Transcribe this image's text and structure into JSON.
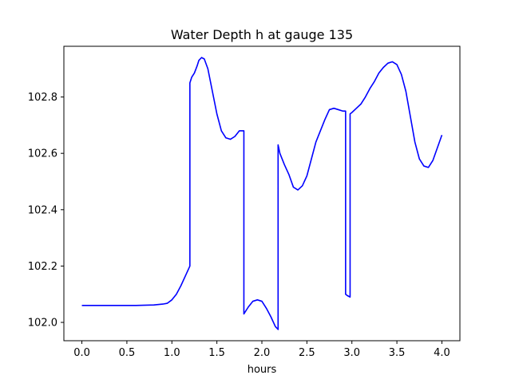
{
  "chart_data": {
    "type": "line",
    "title": "Water Depth h at gauge 135",
    "xlabel": "hours",
    "ylabel": "",
    "xlim": [
      -0.2,
      4.2
    ],
    "ylim": [
      101.935,
      102.98
    ],
    "xticks": [
      0.0,
      0.5,
      1.0,
      1.5,
      2.0,
      2.5,
      3.0,
      3.5,
      4.0
    ],
    "xtick_labels": [
      "0.0",
      "0.5",
      "1.0",
      "1.5",
      "2.0",
      "2.5",
      "3.0",
      "3.5",
      "4.0"
    ],
    "yticks": [
      102.0,
      102.2,
      102.4,
      102.6,
      102.8
    ],
    "ytick_labels": [
      "102.0",
      "102.2",
      "102.4",
      "102.6",
      "102.8"
    ],
    "grid": false,
    "line_color": "#0000ff",
    "series": [
      {
        "x": [
          0.0,
          0.2,
          0.4,
          0.6,
          0.8,
          0.9,
          0.95,
          1.0,
          1.05,
          1.1,
          1.15,
          1.2,
          1.2,
          1.22,
          1.25,
          1.28,
          1.3,
          1.33,
          1.36,
          1.4,
          1.45,
          1.5,
          1.55,
          1.6,
          1.65,
          1.7,
          1.75,
          1.8,
          1.8,
          1.85,
          1.9,
          1.95,
          2.0,
          2.05,
          2.1,
          2.15,
          2.18,
          2.18,
          2.2,
          2.25,
          2.3,
          2.35,
          2.4,
          2.45,
          2.5,
          2.55,
          2.6,
          2.65,
          2.7,
          2.75,
          2.8,
          2.85,
          2.9,
          2.93,
          2.93,
          2.95,
          2.98,
          2.98,
          3.0,
          3.05,
          3.1,
          3.15,
          3.2,
          3.25,
          3.3,
          3.35,
          3.4,
          3.45,
          3.5,
          3.55,
          3.6,
          3.65,
          3.7,
          3.75,
          3.8,
          3.85,
          3.9,
          3.95,
          4.0
        ],
        "y": [
          102.06,
          102.06,
          102.06,
          102.06,
          102.062,
          102.065,
          102.068,
          102.08,
          102.1,
          102.13,
          102.165,
          102.2,
          102.85,
          102.87,
          102.885,
          102.91,
          102.93,
          102.94,
          102.935,
          102.9,
          102.82,
          102.74,
          102.68,
          102.655,
          102.65,
          102.66,
          102.68,
          102.68,
          102.03,
          102.055,
          102.075,
          102.08,
          102.075,
          102.05,
          102.02,
          101.985,
          101.975,
          102.63,
          102.6,
          102.56,
          102.525,
          102.48,
          102.47,
          102.485,
          102.52,
          102.58,
          102.64,
          102.68,
          102.72,
          102.755,
          102.76,
          102.755,
          102.75,
          102.75,
          102.1,
          102.095,
          102.09,
          102.74,
          102.745,
          102.76,
          102.775,
          102.8,
          102.83,
          102.855,
          102.885,
          102.905,
          102.92,
          102.925,
          102.915,
          102.88,
          102.82,
          102.73,
          102.64,
          102.58,
          102.555,
          102.55,
          102.575,
          102.62,
          102.665
        ]
      }
    ]
  }
}
